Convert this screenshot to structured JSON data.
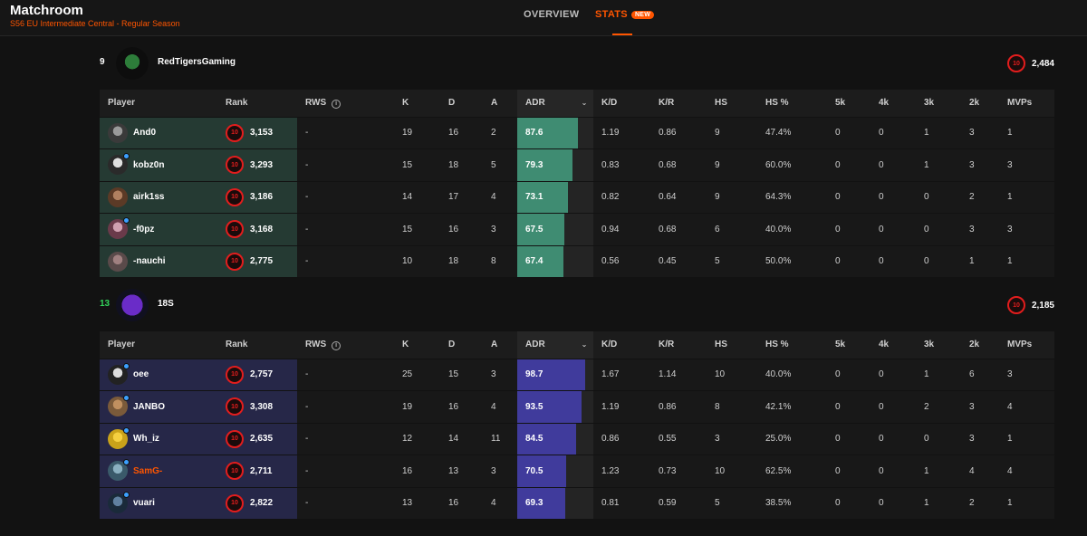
{
  "header": {
    "title": "Matchroom",
    "subtitle": "S56 EU Intermediate Central - Regular Season",
    "tabs": [
      {
        "label": "OVERVIEW",
        "active": false
      },
      {
        "label": "STATS",
        "badge": "NEW",
        "active": true
      }
    ],
    "accent_color": "#ff5500"
  },
  "columns": [
    "Player",
    "Rank",
    "RWS",
    "K",
    "D",
    "A",
    "ADR",
    "K/D",
    "K/R",
    "HS",
    "HS %",
    "5k",
    "4k",
    "3k",
    "2k",
    "MVPs"
  ],
  "teams": [
    {
      "position": "9",
      "name": "RedTigersGaming",
      "elo": "2,484",
      "level": "10",
      "color": "#3f8c72",
      "players": [
        {
          "name": "And0",
          "rank": "3,153",
          "level": "10",
          "rws": "-",
          "k": "19",
          "d": "16",
          "a": "2",
          "adr": "87.6",
          "kd": "1.19",
          "kr": "0.86",
          "hs": "9",
          "hsp": "47.4%",
          "k5": "0",
          "k4": "0",
          "k3": "1",
          "k2": "3",
          "mvps": "1"
        },
        {
          "name": "kobz0n",
          "rank": "3,293",
          "level": "10",
          "rws": "-",
          "k": "15",
          "d": "18",
          "a": "5",
          "adr": "79.3",
          "kd": "0.83",
          "kr": "0.68",
          "hs": "9",
          "hsp": "60.0%",
          "k5": "0",
          "k4": "0",
          "k3": "1",
          "k2": "3",
          "mvps": "3"
        },
        {
          "name": "airk1ss",
          "rank": "3,186",
          "level": "10",
          "rws": "-",
          "k": "14",
          "d": "17",
          "a": "4",
          "adr": "73.1",
          "kd": "0.82",
          "kr": "0.64",
          "hs": "9",
          "hsp": "64.3%",
          "k5": "0",
          "k4": "0",
          "k3": "0",
          "k2": "2",
          "mvps": "1"
        },
        {
          "name": "-f0pz",
          "rank": "3,168",
          "level": "10",
          "rws": "-",
          "k": "15",
          "d": "16",
          "a": "3",
          "adr": "67.5",
          "kd": "0.94",
          "kr": "0.68",
          "hs": "6",
          "hsp": "40.0%",
          "k5": "0",
          "k4": "0",
          "k3": "0",
          "k2": "3",
          "mvps": "3"
        },
        {
          "name": "-nauchi",
          "rank": "2,775",
          "level": "10",
          "rws": "-",
          "k": "10",
          "d": "18",
          "a": "8",
          "adr": "67.4",
          "kd": "0.56",
          "kr": "0.45",
          "hs": "5",
          "hsp": "50.0%",
          "k5": "0",
          "k4": "0",
          "k3": "0",
          "k2": "1",
          "mvps": "1"
        }
      ]
    },
    {
      "position": "13",
      "name": "18S",
      "elo": "2,185",
      "level": "10",
      "color": "#403b9c",
      "players": [
        {
          "name": "oee",
          "rank": "2,757",
          "level": "10",
          "rws": "-",
          "k": "25",
          "d": "15",
          "a": "3",
          "adr": "98.7",
          "kd": "1.67",
          "kr": "1.14",
          "hs": "10",
          "hsp": "40.0%",
          "k5": "0",
          "k4": "0",
          "k3": "1",
          "k2": "6",
          "mvps": "3"
        },
        {
          "name": "JANBO",
          "rank": "3,308",
          "level": "10",
          "rws": "-",
          "k": "19",
          "d": "16",
          "a": "4",
          "adr": "93.5",
          "kd": "1.19",
          "kr": "0.86",
          "hs": "8",
          "hsp": "42.1%",
          "k5": "0",
          "k4": "0",
          "k3": "2",
          "k2": "3",
          "mvps": "4"
        },
        {
          "name": "Wh_iz",
          "rank": "2,635",
          "level": "10",
          "rws": "-",
          "k": "12",
          "d": "14",
          "a": "11",
          "adr": "84.5",
          "kd": "0.86",
          "kr": "0.55",
          "hs": "3",
          "hsp": "25.0%",
          "k5": "0",
          "k4": "0",
          "k3": "0",
          "k2": "3",
          "mvps": "1"
        },
        {
          "name": "SamG-",
          "rank": "2,711",
          "level": "10",
          "rws": "-",
          "k": "16",
          "d": "13",
          "a": "3",
          "adr": "70.5",
          "kd": "1.23",
          "kr": "0.73",
          "hs": "10",
          "hsp": "62.5%",
          "k5": "0",
          "k4": "0",
          "k3": "1",
          "k2": "4",
          "mvps": "4",
          "highlight": true
        },
        {
          "name": "vuari",
          "rank": "2,822",
          "level": "10",
          "rws": "-",
          "k": "13",
          "d": "16",
          "a": "4",
          "adr": "69.3",
          "kd": "0.81",
          "kr": "0.59",
          "hs": "5",
          "hsp": "38.5%",
          "k5": "0",
          "k4": "0",
          "k3": "1",
          "k2": "2",
          "mvps": "1"
        }
      ]
    }
  ]
}
